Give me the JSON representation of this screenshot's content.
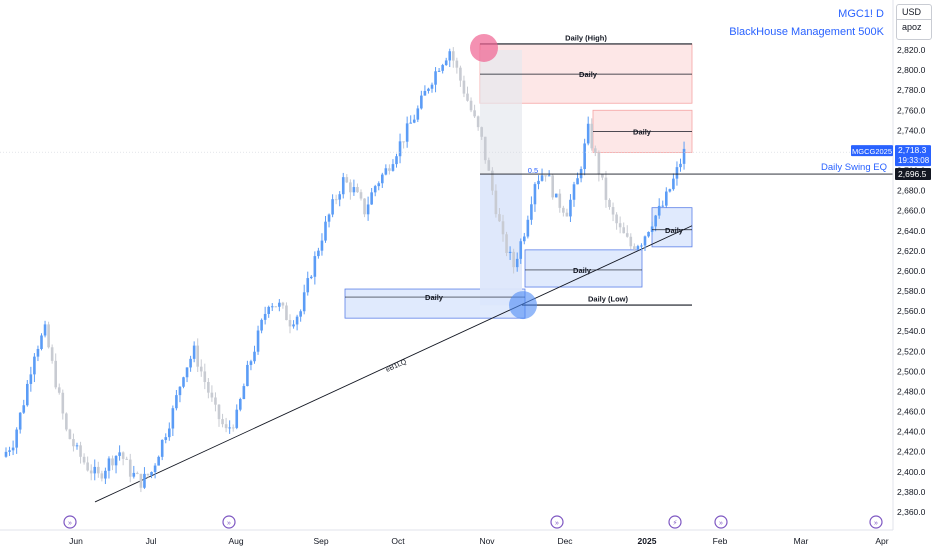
{
  "header": {
    "symbol_line": "MGC1! D",
    "subtitle": "BlackHouse Management 500K"
  },
  "currency": {
    "code": "USD",
    "unit": "apoz"
  },
  "price_tags": {
    "symbol": "MGCG2025",
    "last_price": "2,718.3",
    "countdown": "19:33:08",
    "eq_price": "2,696.5",
    "eq_label": "Daily Swing EQ"
  },
  "colors": {
    "up": "#2962ff",
    "up_light": "#5b9cf6",
    "down": "#c8cbd2",
    "supply_fill": "#fde3e3",
    "supply_border": "#f5a3a3",
    "demand_fill": "#dbe6fd",
    "demand_border": "#5b7fe8",
    "trendline": "#131722",
    "high_circle": "#f06292",
    "low_circle": "#4c8bf5"
  },
  "chart_data": {
    "type": "candlestick",
    "ylim": [
      2350,
      2840
    ],
    "yticks": [
      "2,820.0",
      "2,800.0",
      "2,780.0",
      "2,760.0",
      "2,740.0",
      "2,720.0",
      "2,700.0",
      "2,680.0",
      "2,660.0",
      "2,640.0",
      "2,620.0",
      "2,600.0",
      "2,580.0",
      "2,560.0",
      "2,540.0",
      "2,520.0",
      "2,500.0",
      "2,480.0",
      "2,460.0",
      "2,440.0",
      "2,420.0",
      "2,400.0",
      "2,380.0",
      "2,360.0"
    ],
    "xticks": [
      "Jun",
      "Jul",
      "Aug",
      "Sep",
      "Oct",
      "Nov",
      "Dec",
      "2025",
      "Feb",
      "Mar",
      "Apr"
    ],
    "price_path": [
      [
        0,
        2415
      ],
      [
        3,
        2430
      ],
      [
        6,
        2470
      ],
      [
        9,
        2520
      ],
      [
        12,
        2540
      ],
      [
        15,
        2490
      ],
      [
        18,
        2440
      ],
      [
        21,
        2420
      ],
      [
        24,
        2405
      ],
      [
        27,
        2395
      ],
      [
        30,
        2410
      ],
      [
        33,
        2420
      ],
      [
        36,
        2400
      ],
      [
        39,
        2390
      ],
      [
        42,
        2400
      ],
      [
        45,
        2430
      ],
      [
        48,
        2460
      ],
      [
        51,
        2500
      ],
      [
        54,
        2520
      ],
      [
        57,
        2490
      ],
      [
        60,
        2460
      ],
      [
        63,
        2440
      ],
      [
        66,
        2455
      ],
      [
        69,
        2500
      ],
      [
        72,
        2535
      ],
      [
        75,
        2570
      ],
      [
        78,
        2565
      ],
      [
        81,
        2550
      ],
      [
        84,
        2560
      ],
      [
        87,
        2600
      ],
      [
        90,
        2635
      ],
      [
        93,
        2665
      ],
      [
        96,
        2690
      ],
      [
        99,
        2680
      ],
      [
        102,
        2660
      ],
      [
        105,
        2685
      ],
      [
        108,
        2700
      ],
      [
        111,
        2720
      ],
      [
        114,
        2740
      ],
      [
        117,
        2760
      ],
      [
        120,
        2785
      ],
      [
        123,
        2805
      ],
      [
        126,
        2820
      ],
      [
        129,
        2790
      ],
      [
        132,
        2760
      ],
      [
        135,
        2730
      ],
      [
        138,
        2680
      ],
      [
        141,
        2630
      ],
      [
        144,
        2605
      ],
      [
        147,
        2640
      ],
      [
        150,
        2690
      ],
      [
        153,
        2700
      ],
      [
        156,
        2670
      ],
      [
        159,
        2660
      ],
      [
        162,
        2690
      ],
      [
        165,
        2740
      ],
      [
        168,
        2700
      ],
      [
        171,
        2660
      ],
      [
        174,
        2640
      ],
      [
        177,
        2625
      ],
      [
        180,
        2630
      ],
      [
        183,
        2650
      ],
      [
        186,
        2665
      ],
      [
        189,
        2690
      ],
      [
        192,
        2718
      ]
    ],
    "levels": [
      {
        "label": "Daily (High)",
        "price": 2826
      },
      {
        "label": "Daily",
        "price": 2796
      },
      {
        "label": "Daily",
        "price": 2739
      },
      {
        "label": "Daily",
        "price": 2641
      },
      {
        "label": "Daily",
        "price": 2601
      },
      {
        "label": "Daily",
        "price": 2574
      },
      {
        "label": "Daily (Low)",
        "price": 2566
      }
    ],
    "zones": [
      {
        "kind": "supply",
        "top": 2826,
        "bottom": 2767
      },
      {
        "kind": "supply",
        "top": 2760,
        "bottom": 2718
      },
      {
        "kind": "demand",
        "top": 2663,
        "bottom": 2624
      },
      {
        "kind": "demand",
        "top": 2621,
        "bottom": 2584
      },
      {
        "kind": "demand",
        "top": 2582,
        "bottom": 2553
      }
    ],
    "fib_label": "0.5",
    "fib_price": 2696.5,
    "trendline_label": "eB1LQ",
    "trendline": {
      "start": 2370,
      "end": 2645
    }
  }
}
